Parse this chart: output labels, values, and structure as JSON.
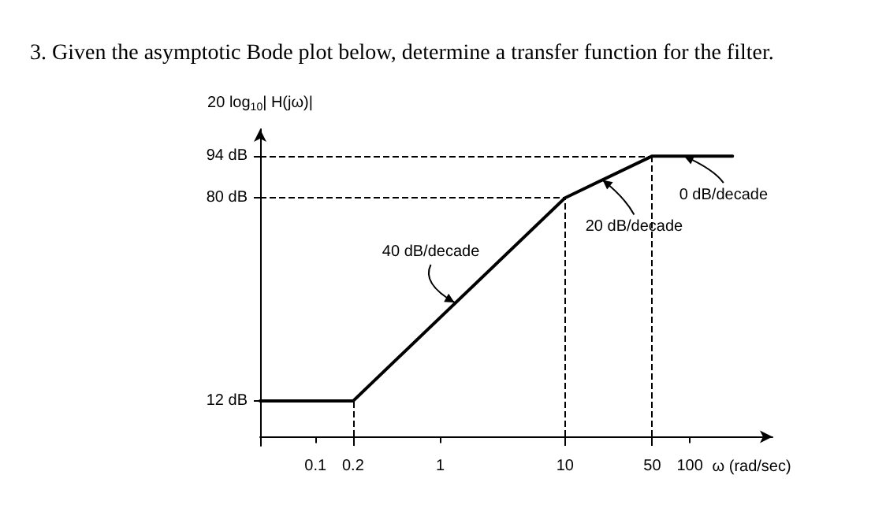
{
  "chart_data": {
    "type": "line",
    "title": "3. Given the asymptotic Bode plot below, determine a transfer function for the filter.",
    "ylabel": "20 log$_{10}$| H(jω)|",
    "xlabel": "ω (rad/sec)",
    "x": [
      0.036,
      0.2,
      10,
      50,
      220
    ],
    "series": [
      {
        "color": "#000000",
        "values": [
          12,
          12,
          80,
          94,
          94
        ]
      }
    ],
    "log": "x",
    "xlim": [
      0.036,
      460
    ],
    "xticks": [
      0.1,
      0.2,
      1,
      10,
      50,
      100
    ],
    "ylim": [
      -3,
      103
    ],
    "yticks": [
      {
        "value": 12,
        "label": "12 dB"
      },
      {
        "value": 80,
        "label": "80 dB"
      },
      {
        "value": 94,
        "label": "94 dB"
      }
    ],
    "ref_lines": [
      {
        "axis": "y",
        "value": 94,
        "label": null,
        "color": "#000000",
        "line_style": "dashed"
      },
      {
        "axis": "y",
        "value": 80,
        "label": null,
        "color": "#000000",
        "line_style": "dashed"
      },
      {
        "axis": "x",
        "value": 0.2,
        "label": null,
        "color": "#000000",
        "line_style": "dashed"
      },
      {
        "axis": "x",
        "value": 10,
        "label": null,
        "color": "#000000",
        "line_style": "dashed"
      },
      {
        "axis": "x",
        "value": 50,
        "label": null,
        "color": "#000000",
        "line_style": "dashed"
      }
    ],
    "annotations": [
      {
        "text": "40 dB/decade",
        "x": 1.3,
        "y": 45
      },
      {
        "text": "20 dB/decade",
        "x": 20,
        "y": 86
      },
      {
        "text": "0 dB/decade",
        "x": 90,
        "y": 94
      }
    ],
    "grid": false,
    "marker": "none",
    "line_style": "solid"
  }
}
